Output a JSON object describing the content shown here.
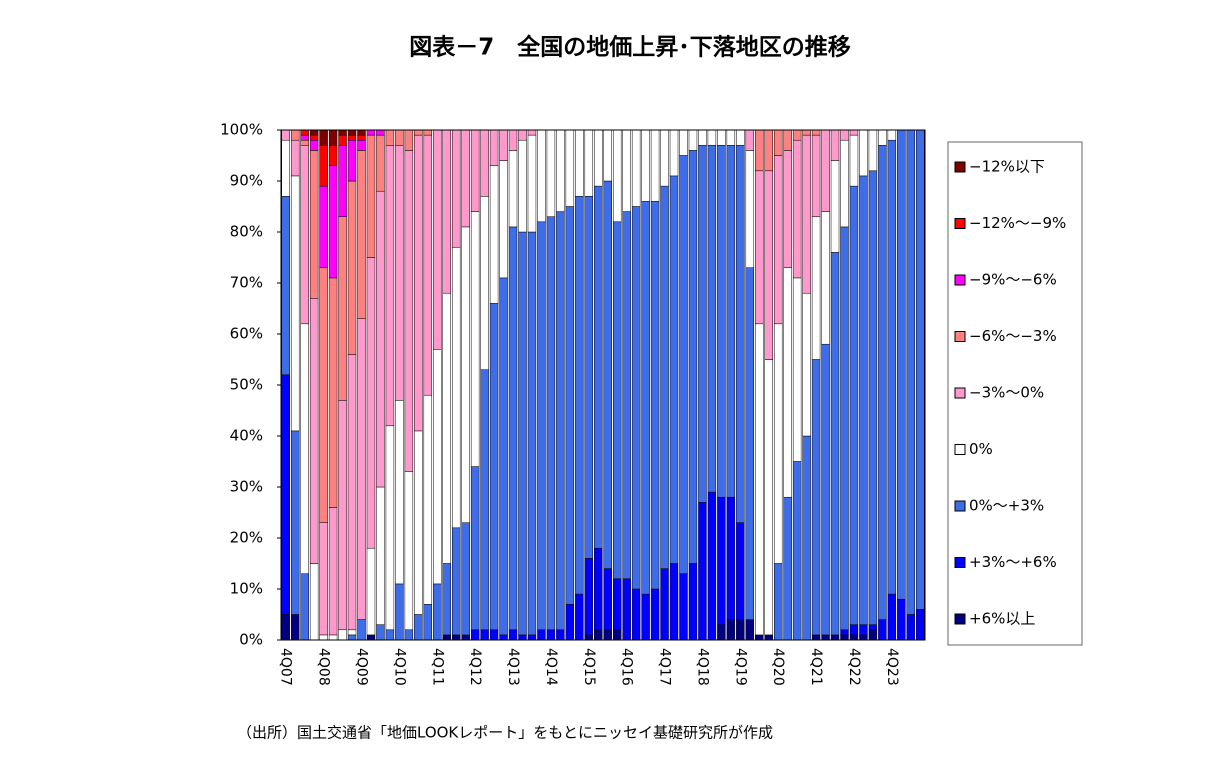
{
  "chart_data": {
    "type": "stacked_bar_100",
    "title": "図表－7　全国の地価上昇･下落地区の推移",
    "source": "（出所）国土交通省「地価LOOKレポート」をもとにニッセイ基礎研究所が作成",
    "categories": [
      "4Q07",
      null,
      null,
      null,
      "4Q08",
      null,
      null,
      null,
      "4Q09",
      null,
      null,
      null,
      "4Q10",
      null,
      null,
      null,
      "4Q11",
      null,
      null,
      null,
      "4Q12",
      null,
      null,
      null,
      "4Q13",
      null,
      null,
      null,
      "4Q14",
      null,
      null,
      null,
      "4Q15",
      null,
      null,
      null,
      "4Q16",
      null,
      null,
      null,
      "4Q17",
      null,
      null,
      null,
      "4Q18",
      null,
      null,
      null,
      "4Q19",
      null,
      null,
      null,
      "4Q20",
      null,
      null,
      null,
      "4Q21",
      null,
      null,
      null,
      "4Q22",
      null,
      null,
      null,
      "4Q23",
      null,
      null,
      null
    ],
    "ylim": [
      0,
      100
    ],
    "yticks": [
      {
        "value": 0,
        "label": "0%"
      },
      {
        "value": 10,
        "label": "10%"
      },
      {
        "value": 20,
        "label": "20%"
      },
      {
        "value": 30,
        "label": "30%"
      },
      {
        "value": 40,
        "label": "40%"
      },
      {
        "value": 50,
        "label": "50%"
      },
      {
        "value": 60,
        "label": "60%"
      },
      {
        "value": 70,
        "label": "70%"
      },
      {
        "value": 80,
        "label": "80%"
      },
      {
        "value": 90,
        "label": "90%"
      },
      {
        "value": 100,
        "label": "100%"
      }
    ],
    "grid": false,
    "series": [
      {
        "name": "−12%以下",
        "color": "#800000",
        "values": [
          0,
          0,
          0,
          1,
          3,
          3,
          1,
          1,
          1,
          0,
          0,
          0,
          0,
          0,
          0,
          0,
          0,
          0,
          0,
          0,
          0,
          0,
          0,
          0,
          0,
          0,
          0,
          0,
          0,
          0,
          0,
          0,
          0,
          0,
          0,
          0,
          0,
          0,
          0,
          0,
          0,
          0,
          0,
          0,
          0,
          0,
          0,
          0,
          0,
          0,
          0,
          0,
          0,
          0,
          0,
          0,
          0,
          0,
          0,
          0,
          0,
          0,
          0,
          0,
          0,
          0,
          0,
          0
        ]
      },
      {
        "name": "−12%〜−9%",
        "color": "#ff0000",
        "values": [
          0,
          0,
          1,
          1,
          8,
          4,
          2,
          1,
          1,
          0,
          0,
          0,
          0,
          0,
          0,
          0,
          0,
          0,
          0,
          0,
          0,
          0,
          0,
          0,
          0,
          0,
          0,
          0,
          0,
          0,
          0,
          0,
          0,
          0,
          0,
          0,
          0,
          0,
          0,
          0,
          0,
          0,
          0,
          0,
          0,
          0,
          0,
          0,
          0,
          0,
          0,
          0,
          0,
          0,
          0,
          0,
          0,
          0,
          0,
          0,
          0,
          0,
          0,
          0,
          0,
          0,
          0,
          0
        ]
      },
      {
        "name": "−9%〜−6%",
        "color": "#ff00ff",
        "values": [
          0,
          0,
          1,
          2,
          16,
          22,
          14,
          8,
          2,
          1,
          1,
          0,
          0,
          0,
          0,
          0,
          0,
          0,
          0,
          0,
          0,
          0,
          0,
          0,
          0,
          0,
          0,
          0,
          0,
          0,
          0,
          0,
          0,
          0,
          0,
          0,
          0,
          0,
          0,
          0,
          0,
          0,
          0,
          0,
          0,
          0,
          0,
          0,
          0,
          0,
          0,
          0,
          0,
          0,
          0,
          0,
          0,
          0,
          0,
          0,
          0,
          0,
          0,
          0,
          0,
          0,
          0,
          0
        ]
      },
      {
        "name": "−6%〜−3%",
        "color": "#ff8080",
        "values": [
          0,
          2,
          1,
          29,
          50,
          45,
          36,
          34,
          33,
          24,
          11,
          3,
          3,
          4,
          1,
          1,
          0,
          0,
          0,
          0,
          0,
          0,
          0,
          0,
          0,
          0,
          0,
          0,
          0,
          0,
          0,
          0,
          0,
          0,
          0,
          0,
          0,
          0,
          0,
          0,
          0,
          0,
          0,
          0,
          0,
          0,
          0,
          0,
          0,
          0,
          8,
          8,
          5,
          4,
          2,
          1,
          1,
          0,
          0,
          0,
          0,
          0,
          0,
          0,
          0,
          0,
          0,
          0
        ]
      },
      {
        "name": "−3%〜0%",
        "color": "#ff99cc",
        "values": [
          2,
          7,
          35,
          52,
          22,
          25,
          45,
          54,
          59,
          57,
          58,
          55,
          50,
          63,
          58,
          51,
          43,
          32,
          23,
          19,
          16,
          13,
          7,
          6,
          4,
          2,
          1,
          0,
          0,
          0,
          0,
          0,
          0,
          0,
          0,
          0,
          0,
          0,
          0,
          0,
          0,
          0,
          0,
          0,
          0,
          0,
          0,
          0,
          0,
          4,
          30,
          37,
          33,
          23,
          27,
          31,
          16,
          16,
          6,
          2,
          1,
          0,
          0,
          0,
          0,
          0,
          0,
          0
        ]
      },
      {
        "name": "0%",
        "color": "#ffffff",
        "values": [
          11,
          50,
          49,
          15,
          1,
          1,
          2,
          1,
          0,
          17,
          27,
          40,
          36,
          31,
          36,
          41,
          46,
          53,
          55,
          58,
          50,
          34,
          27,
          23,
          15,
          18,
          19,
          18,
          17,
          16,
          15,
          13,
          13,
          11,
          10,
          18,
          16,
          15,
          14,
          14,
          11,
          9,
          5,
          4,
          3,
          3,
          3,
          3,
          3,
          23,
          61,
          54,
          47,
          45,
          36,
          28,
          28,
          26,
          18,
          17,
          10,
          9,
          8,
          3,
          2,
          0,
          0,
          0
        ]
      },
      {
        "name": "0%〜+3%",
        "color": "#3f6de8",
        "values": [
          35,
          36,
          13,
          0,
          0,
          0,
          0,
          1,
          4,
          0,
          3,
          2,
          11,
          2,
          5,
          7,
          11,
          14,
          21,
          22,
          32,
          51,
          64,
          70,
          79,
          79,
          79,
          80,
          81,
          82,
          78,
          78,
          71,
          71,
          76,
          70,
          72,
          75,
          77,
          76,
          75,
          76,
          82,
          81,
          70,
          68,
          69,
          69,
          74,
          69,
          0,
          0,
          15,
          28,
          35,
          40,
          54,
          57,
          75,
          79,
          86,
          88,
          89,
          93,
          89,
          92,
          95,
          94
        ]
      },
      {
        "name": "+3%〜+6%",
        "color": "#0000ff",
        "values": [
          47,
          0,
          0,
          0,
          0,
          0,
          0,
          0,
          0,
          0,
          0,
          0,
          0,
          0,
          0,
          0,
          0,
          0,
          0,
          0,
          2,
          2,
          2,
          1,
          2,
          1,
          1,
          2,
          2,
          2,
          7,
          9,
          15,
          16,
          12,
          10,
          12,
          10,
          9,
          10,
          14,
          15,
          13,
          15,
          27,
          29,
          25,
          24,
          19,
          0,
          0,
          0,
          0,
          0,
          0,
          0,
          0,
          0,
          0,
          1,
          2,
          2,
          1,
          4,
          9,
          8,
          5,
          6
        ]
      },
      {
        "name": "+6%以上",
        "color": "#000080",
        "values": [
          5,
          5,
          0,
          0,
          0,
          0,
          0,
          0,
          0,
          1,
          0,
          0,
          0,
          0,
          0,
          0,
          0,
          1,
          1,
          1,
          0,
          0,
          0,
          0,
          0,
          0,
          0,
          0,
          0,
          0,
          0,
          0,
          1,
          2,
          2,
          2,
          0,
          0,
          0,
          0,
          0,
          0,
          0,
          0,
          0,
          0,
          3,
          4,
          4,
          4,
          1,
          1,
          0,
          0,
          0,
          0,
          1,
          1,
          1,
          1,
          1,
          1,
          2,
          0,
          0,
          0,
          0,
          0
        ]
      }
    ]
  }
}
